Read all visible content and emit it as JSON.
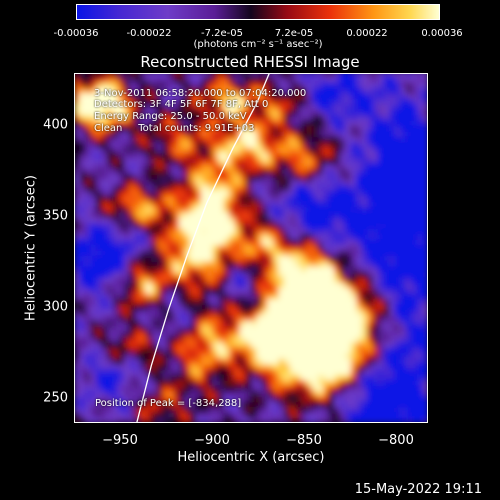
{
  "colorbar": {
    "ticks": [
      "-0.00036",
      "-0.00022",
      "-7.2e-05",
      "7.2e-05",
      "0.00022",
      "0.00036"
    ],
    "unit": "(photons cm⁻² s⁻¹ asec⁻²)",
    "min": -0.00036,
    "max": 0.00036
  },
  "chart_data": {
    "type": "heatmap",
    "title": "Reconstructed RHESSI Image",
    "xlabel": "Heliocentric X (arcsec)",
    "ylabel": "Heliocentric Y (arcsec)",
    "xlim": [
      -972,
      -780
    ],
    "ylim": [
      228,
      422
    ],
    "x_ticks": [
      -950,
      -900,
      -850,
      -800
    ],
    "x_tick_labels": [
      "−950",
      "−900",
      "−850",
      "−800"
    ],
    "y_ticks": [
      250,
      300,
      350,
      400
    ],
    "y_tick_labels": [
      "250",
      "300",
      "350",
      "400"
    ],
    "annotations": [
      "3-Nov-2011 06:58:20.000 to 07:04:20.000",
      "Detectors: 3F 4F 5F 6F 7F 8F, Att 0",
      "Energy Range: 25.0 - 50.0 keV",
      "Clean     Total counts: 9.91E+03"
    ],
    "peak_label": "Position of Peak = [-834,288]",
    "peak": [
      -834,
      288
    ],
    "limb_curve": [
      [
        -938,
        228
      ],
      [
        -930,
        260
      ],
      [
        -921,
        290
      ],
      [
        -911,
        320
      ],
      [
        -900,
        350
      ],
      [
        -886,
        380
      ],
      [
        -873,
        405
      ],
      [
        -866,
        422
      ]
    ]
  },
  "footer": {
    "date": "15-May-2022 19:11"
  }
}
